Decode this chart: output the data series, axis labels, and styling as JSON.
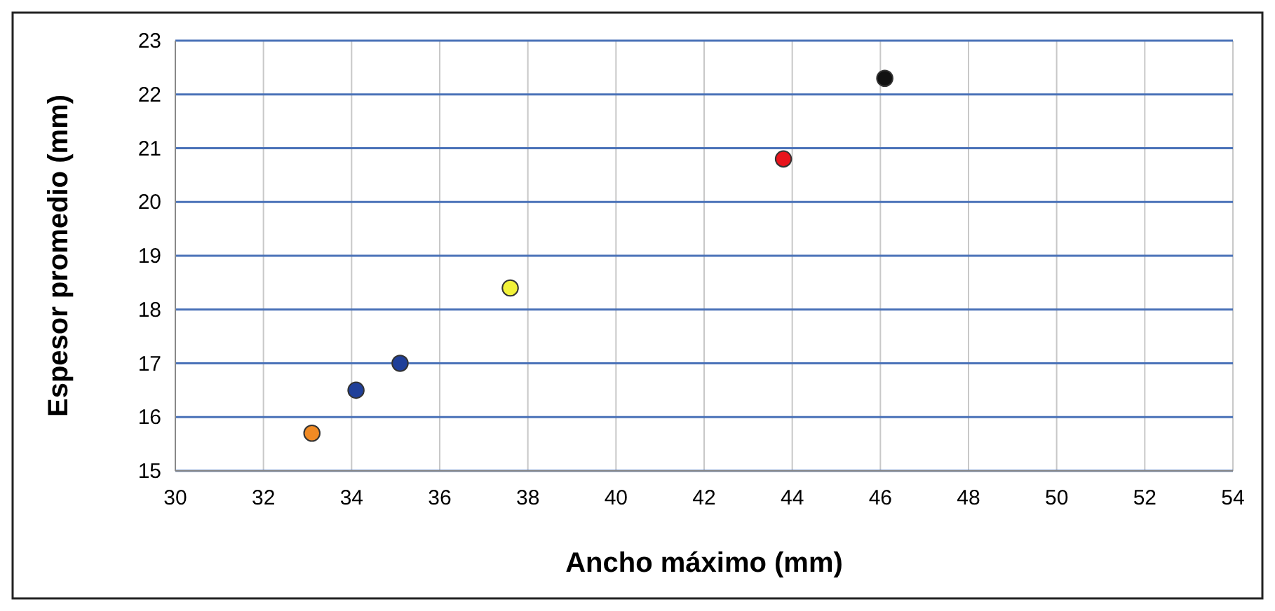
{
  "chart_data": {
    "type": "scatter",
    "xlabel": "Ancho máximo (mm)",
    "ylabel": "Espesor promedio (mm)",
    "x": [
      33.1,
      34.1,
      35.1,
      37.6,
      43.8,
      46.1
    ],
    "values": [
      15.7,
      16.5,
      17.0,
      18.4,
      20.8,
      22.3
    ],
    "colors": [
      "#f08a24",
      "#1f3f99",
      "#1f3f99",
      "#f2f23a",
      "#e8141c",
      "#111111"
    ],
    "xlim": [
      30,
      54
    ],
    "xticks": [
      30,
      32,
      34,
      36,
      38,
      40,
      42,
      44,
      46,
      48,
      50,
      52,
      54
    ],
    "ylim": [
      15,
      23
    ],
    "yticks": [
      15,
      16,
      17,
      18,
      19,
      20,
      21,
      22,
      23
    ],
    "grid": true,
    "marker": "circle"
  }
}
